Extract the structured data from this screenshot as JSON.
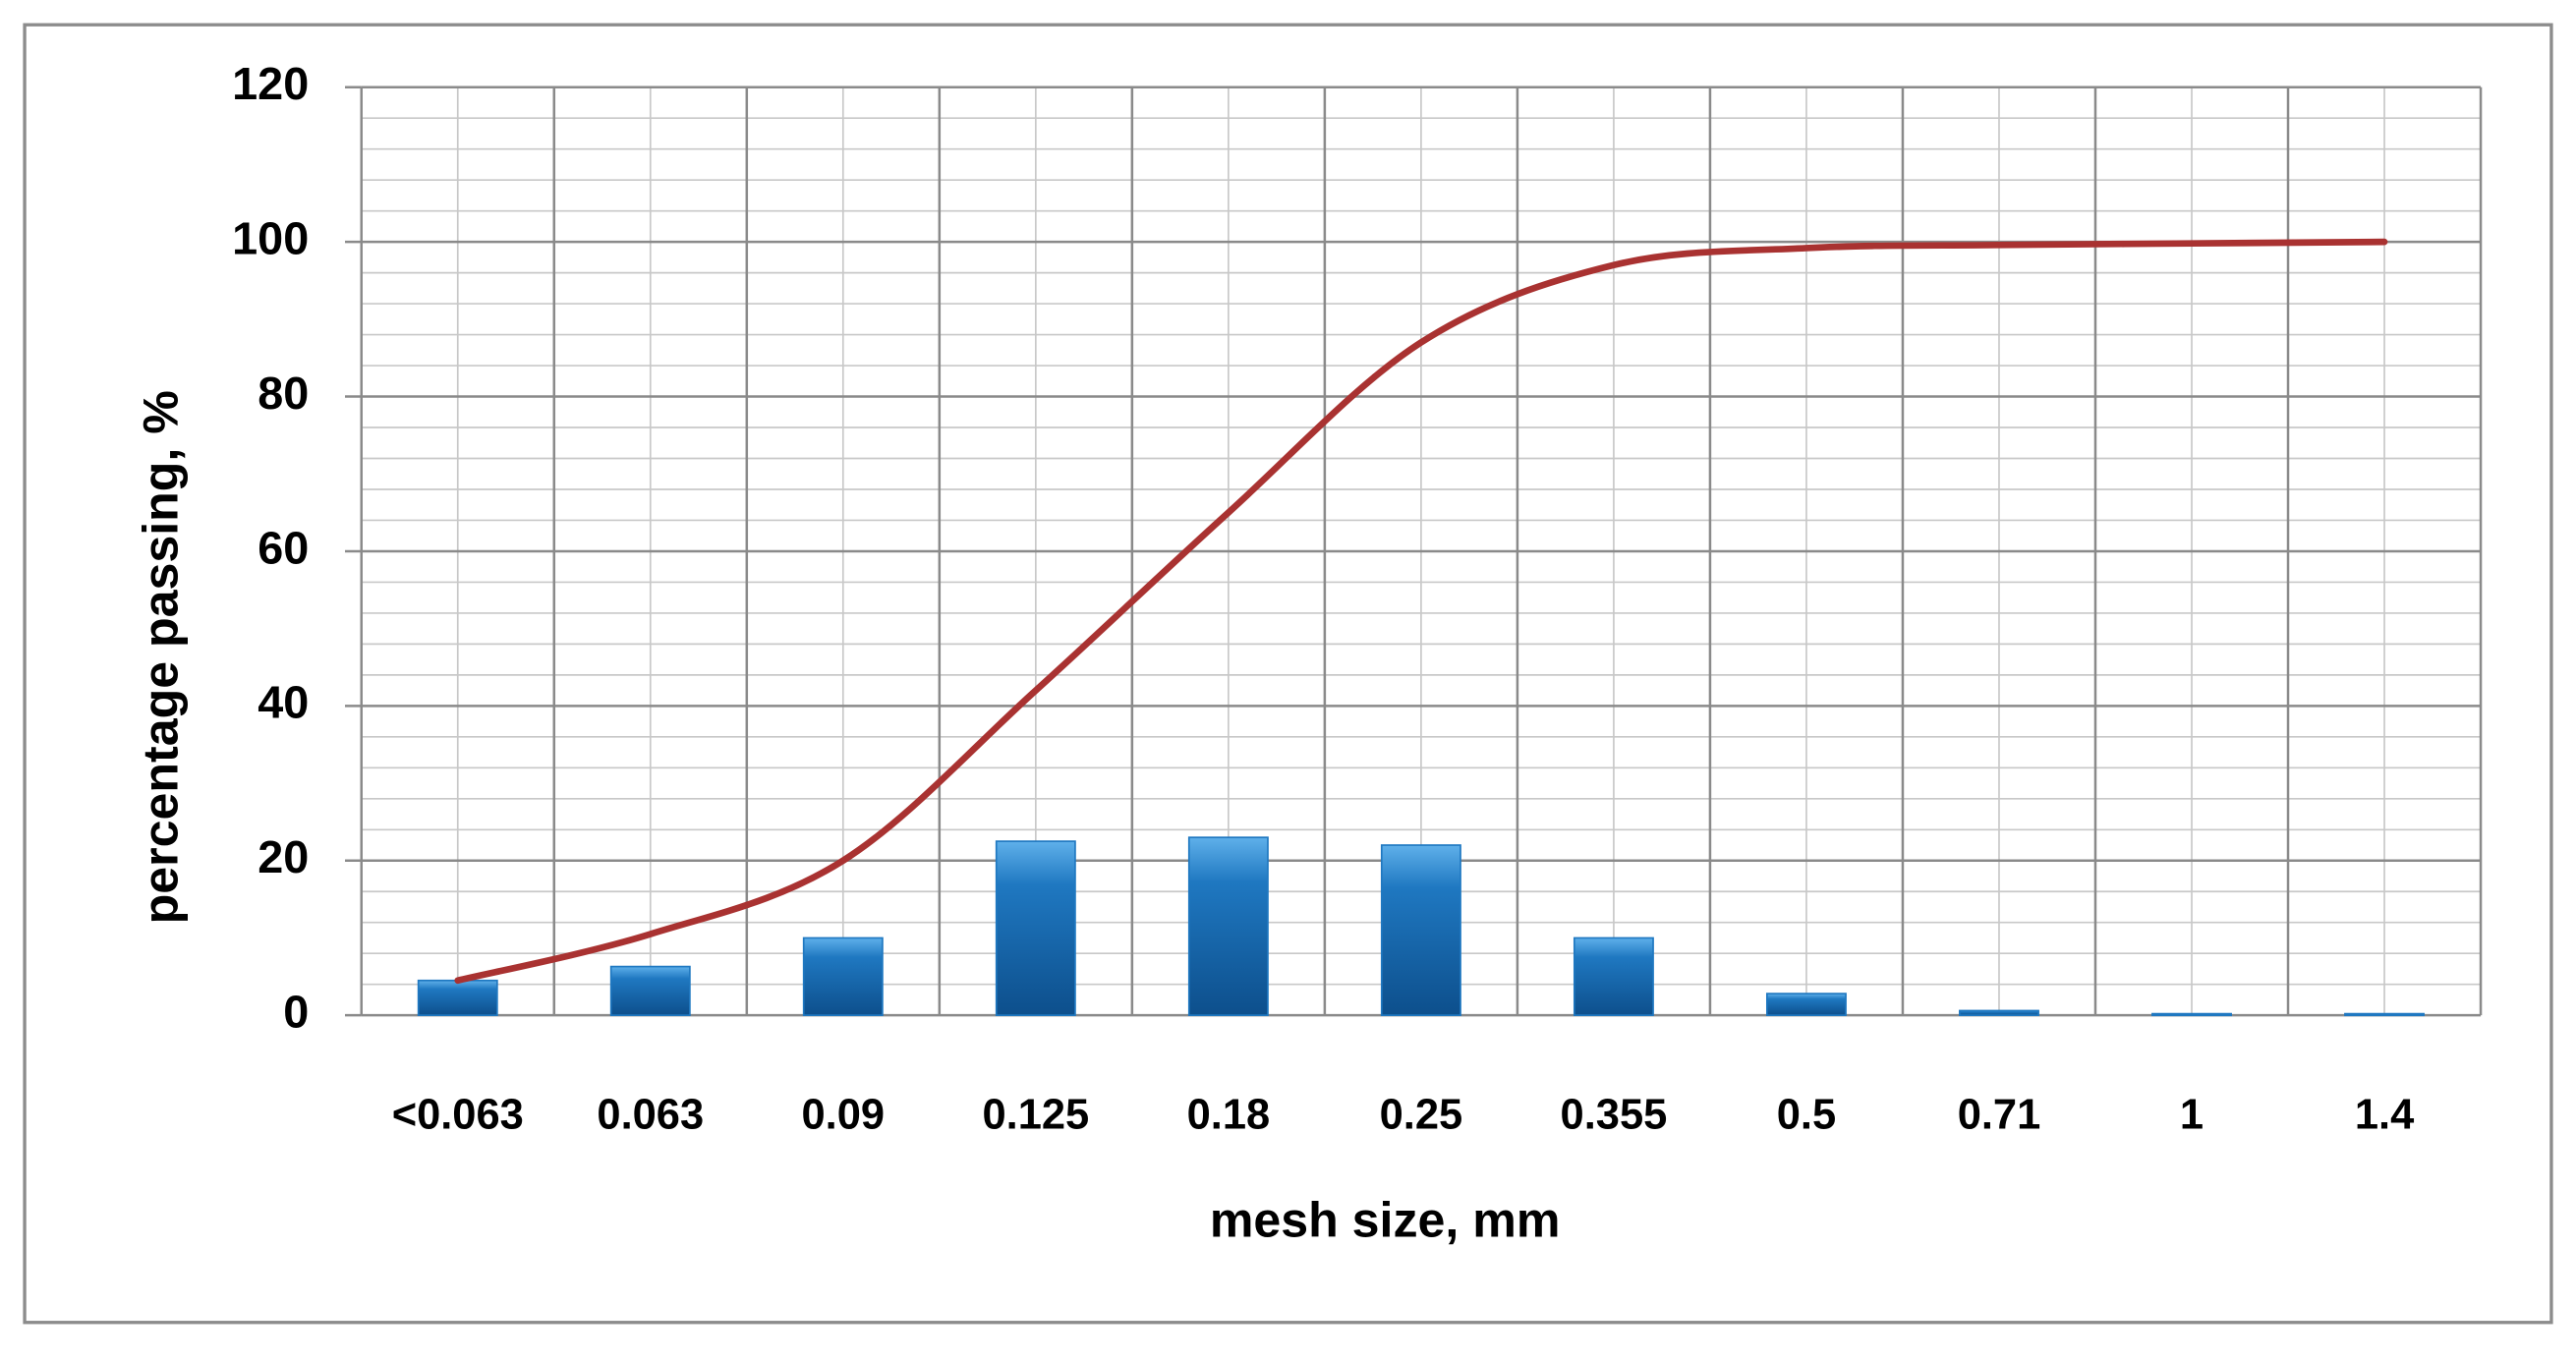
{
  "chart_data": {
    "type": "bar-line",
    "x_label": "mesh size, mm",
    "y_label": "percentage passing, %",
    "categories": [
      "<0.063",
      "0.063",
      "0.09",
      "0.125",
      "0.18",
      "0.25",
      "0.355",
      "0.5",
      "0.71",
      "1",
      "1.4"
    ],
    "series": [
      {
        "type": "bar",
        "color": "#1f78c1",
        "values": [
          4.5,
          6.3,
          10,
          22.5,
          23,
          22,
          10,
          2.8,
          0.6,
          0.2,
          0.2
        ]
      },
      {
        "type": "line",
        "color": "#a93231",
        "values": [
          4.5,
          10.5,
          20,
          42,
          65,
          87,
          97,
          99.2,
          99.6,
          99.8,
          100
        ]
      }
    ],
    "ylim": [
      0,
      120
    ],
    "yticks": [
      0,
      20,
      40,
      60,
      80,
      100,
      120
    ],
    "grid": true
  }
}
